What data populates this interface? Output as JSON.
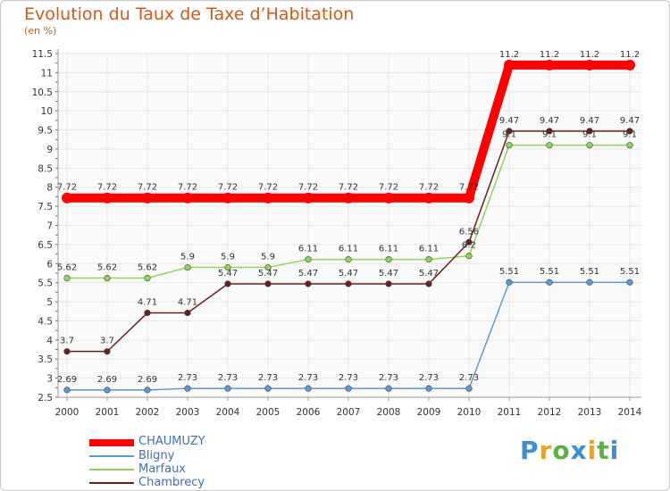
{
  "title": "Evolution du Taux de Taxe d’Habitation",
  "subtitle": "(en %)",
  "brand": {
    "letters": [
      "P",
      "r",
      "o",
      "x",
      "i",
      "t",
      "i"
    ],
    "colors": [
      "#3d8fd1",
      "#e8a12a",
      "#5fb042",
      "#3d8fd1",
      "#e8a12a",
      "#5fb042",
      "#3d8fd1"
    ]
  },
  "chart_data": {
    "type": "line",
    "x": [
      "2000",
      "2001",
      "2002",
      "2003",
      "2004",
      "2005",
      "2006",
      "2007",
      "2008",
      "2009",
      "2010",
      "2011",
      "2012",
      "2013",
      "2014"
    ],
    "ylim": [
      2.5,
      11.5
    ],
    "yticks": [
      "2.5",
      "3",
      "3.5",
      "4",
      "4.5",
      "5",
      "5.5",
      "6",
      "6.5",
      "7",
      "7.5",
      "8",
      "8.5",
      "9",
      "9.5",
      "10",
      "10.5",
      "11",
      "11.5"
    ],
    "grid": true,
    "legend_position": "bottom-left",
    "series": [
      {
        "name": "CHAUMUZY",
        "color": "#ff0000",
        "values": [
          7.72,
          7.72,
          7.72,
          7.72,
          7.72,
          7.72,
          7.72,
          7.72,
          7.72,
          7.72,
          7.72,
          11.2,
          11.2,
          11.2,
          11.2
        ],
        "labels": [
          "7.72",
          "7.72",
          "7.72",
          "7.72",
          "7.72",
          "7.72",
          "7.72",
          "7.72",
          "7.72",
          "7.72",
          "7.72",
          "11.2",
          "11.2",
          "11.2",
          "11.2"
        ]
      },
      {
        "name": "Bligny",
        "color": "#5b9bd5",
        "values": [
          2.69,
          2.69,
          2.69,
          2.73,
          2.73,
          2.73,
          2.73,
          2.73,
          2.73,
          2.73,
          2.73,
          5.51,
          5.51,
          5.51,
          5.51
        ],
        "labels": [
          "2.69",
          "2.69",
          "2.69",
          "2.73",
          "2.73",
          "2.73",
          "2.73",
          "2.73",
          "2.73",
          "2.73",
          "2.73",
          "5.51",
          "5.51",
          "5.51",
          "5.51"
        ]
      },
      {
        "name": "Marfaux",
        "color": "#8fd45a",
        "values": [
          5.62,
          5.62,
          5.62,
          5.9,
          5.9,
          5.9,
          6.11,
          6.11,
          6.11,
          6.11,
          6.2,
          9.1,
          9.1,
          9.1,
          9.1
        ],
        "labels": [
          "5.62",
          "5.62",
          "5.62",
          "5.9",
          "5.9",
          "5.9",
          "6.11",
          "6.11",
          "6.11",
          "6.11",
          "6.2",
          "9.1",
          "9.1",
          "9.1",
          "9.1"
        ]
      },
      {
        "name": "Chambrecy",
        "color": "#6b1f1f",
        "values": [
          3.7,
          3.7,
          4.71,
          4.71,
          5.47,
          5.47,
          5.47,
          5.47,
          5.47,
          5.47,
          6.56,
          9.47,
          9.47,
          9.47,
          9.47
        ],
        "labels": [
          "3.7",
          "3.7",
          "4.71",
          "4.71",
          "5.47",
          "5.47",
          "5.47",
          "5.47",
          "5.47",
          "5.47",
          "6.56",
          "9.47",
          "9.47",
          "9.47",
          "9.47"
        ]
      }
    ]
  }
}
